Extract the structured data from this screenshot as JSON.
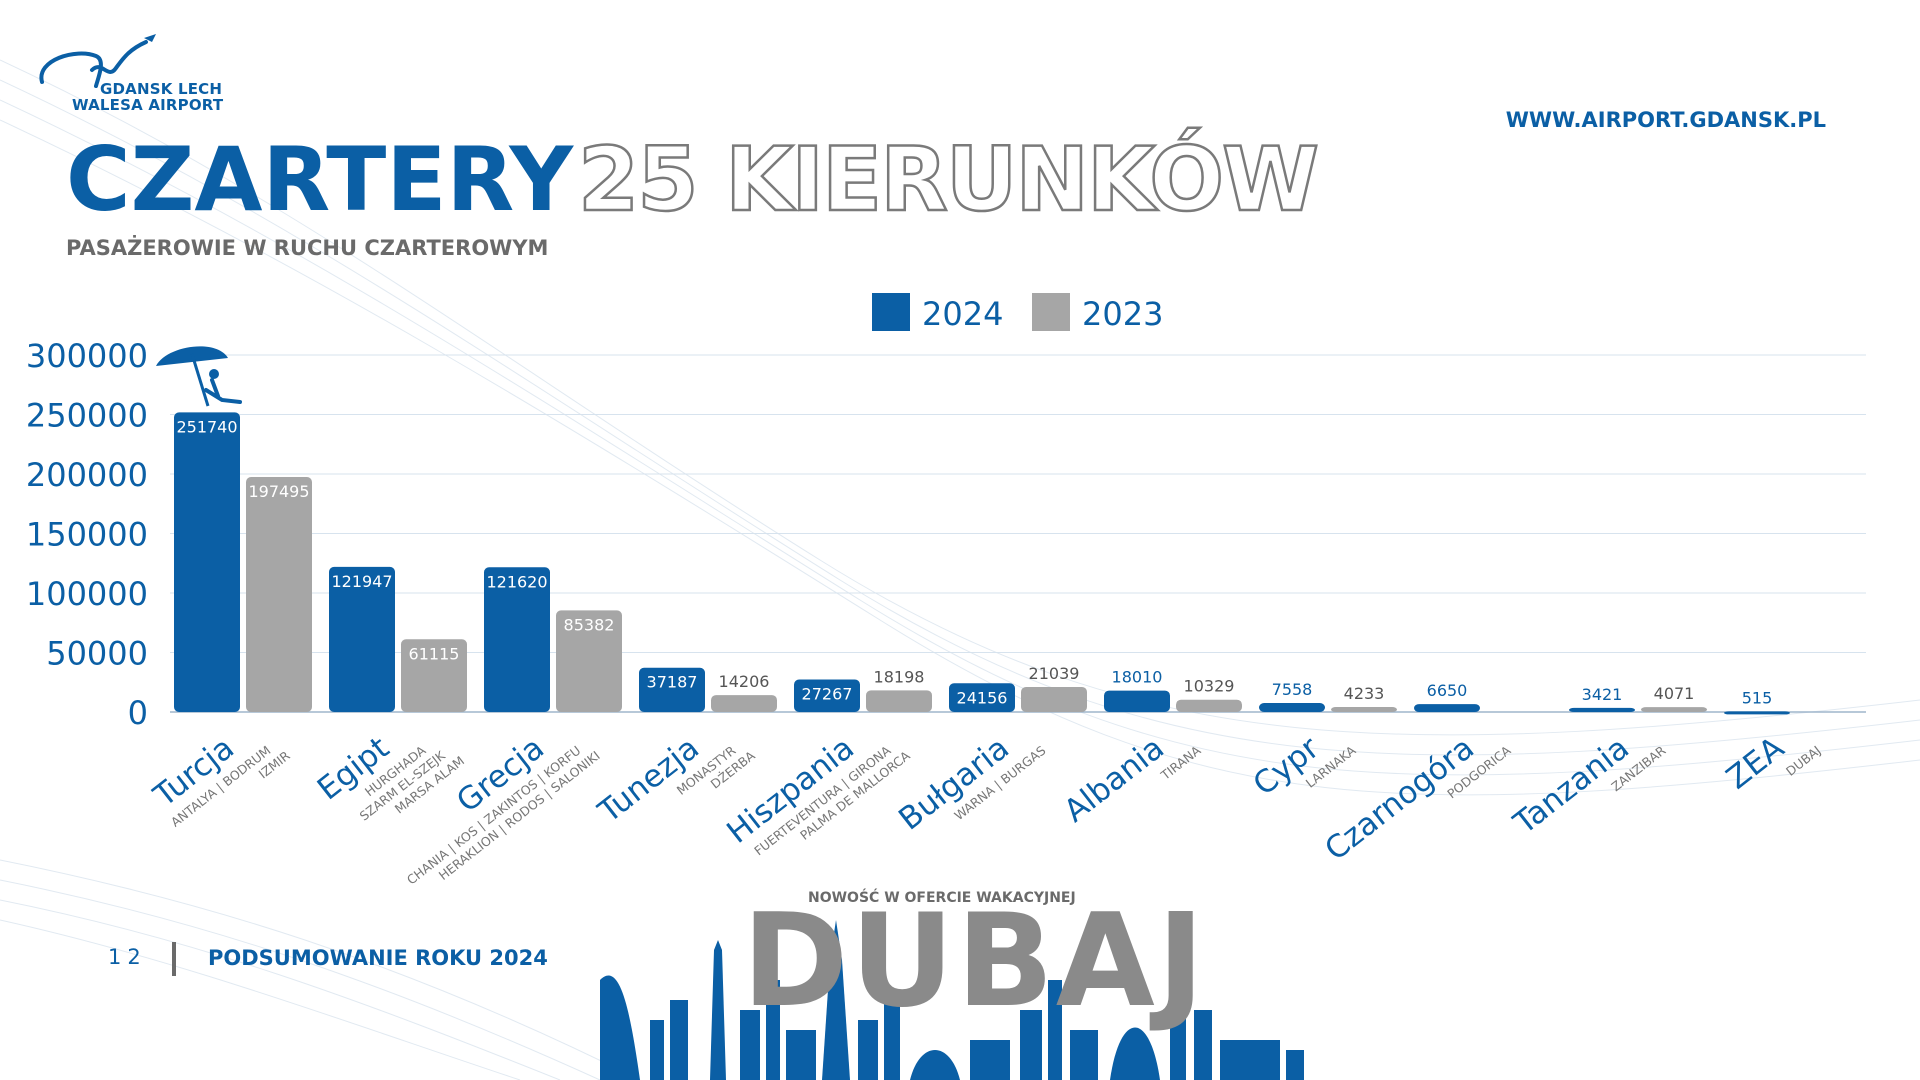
{
  "logo": {
    "line1": "GDANSK LECH",
    "line2": "WALESA AIRPORT"
  },
  "website": "WWW.AIRPORT.GDANSK.PL",
  "title": "CZARTERY",
  "title_outline": "25 KIERUNKÓW",
  "footer": {
    "page": "12",
    "label": "PODSUMOWANIE ROKU 2024"
  },
  "promo": {
    "label": "NOWOŚĆ W OFERCIE WAKACYJNEJ",
    "big": "DUBAJ"
  },
  "colors": {
    "series_2024": "#0b5fa5",
    "series_2023": "#a6a6a6",
    "brand": "#0b5fa5"
  },
  "icons": {
    "chart_decoration": "beach-umbrella-icon",
    "skyline": "dubai-skyline-icon"
  },
  "chart_data": {
    "type": "bar",
    "title": "",
    "subtitle": "PASAŻEROWIE W RUCHU CZARTEROWYM",
    "xlabel": "",
    "ylabel": "",
    "ylim": [
      0,
      300000
    ],
    "yticks": [
      0,
      50000,
      100000,
      150000,
      200000,
      250000,
      300000
    ],
    "grid": true,
    "legend_position": "top-center",
    "categories": [
      "Turcja",
      "Egipt",
      "Grecja",
      "Tunezja",
      "Hiszpania",
      "Bułgaria",
      "Albania",
      "Cypr",
      "Czarnogóra",
      "Tanzania",
      "ZEA"
    ],
    "category_sublabels": [
      [
        "ANTALYA | BODRUM",
        "IZMIR"
      ],
      [
        "HURGHADA",
        "SZARM EL-SZEJK",
        "MARSA ALAM"
      ],
      [
        "CHANIA | KOS | ZAKINTOS | KORFU",
        "HERAKLION | RODOS | SALONIKI"
      ],
      [
        "MONASTYR",
        "DŻERBA"
      ],
      [
        "FUERTEVENTURA | GIRONA",
        "PALMA DE MALLORCA"
      ],
      [
        "WARNA | BURGAS"
      ],
      [
        "TIRANA"
      ],
      [
        "LARNAKA"
      ],
      [
        "PODGORICA"
      ],
      [
        "ZANZIBAR"
      ],
      [
        "DUBAJ"
      ]
    ],
    "series": [
      {
        "name": "2024",
        "values": [
          251740,
          121947,
          121620,
          37187,
          27267,
          24156,
          18010,
          7558,
          6650,
          3421,
          515
        ]
      },
      {
        "name": "2023",
        "values": [
          197495,
          61115,
          85382,
          14206,
          18198,
          21039,
          10329,
          4233,
          null,
          4071,
          null
        ]
      }
    ]
  }
}
